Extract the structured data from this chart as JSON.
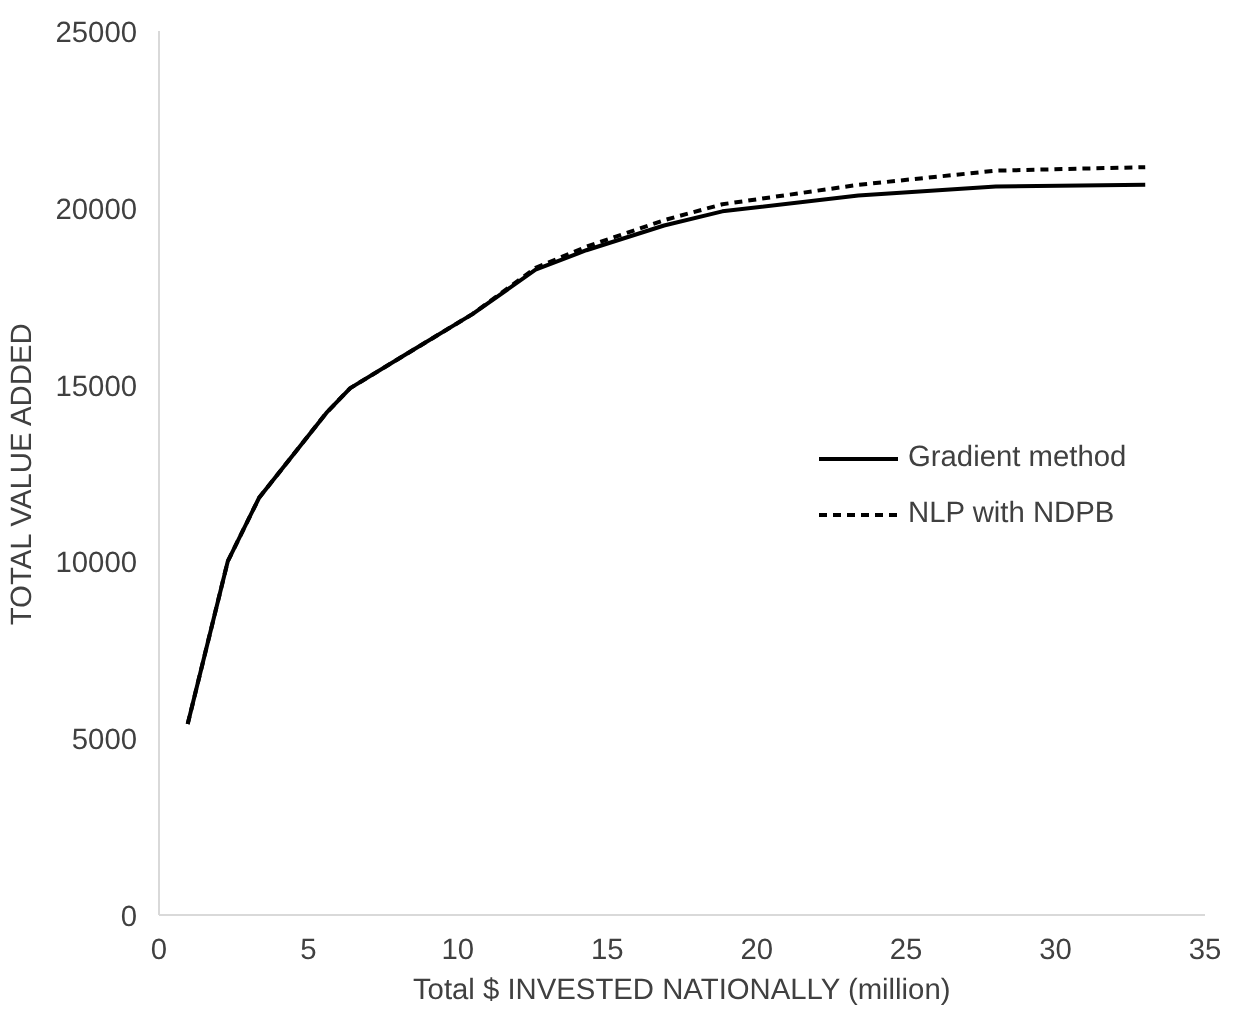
{
  "chart_data": {
    "type": "line",
    "xlabel": "Total $ INVESTED NATIONALLY (million)",
    "ylabel": "TOTAL VALUE ADDED",
    "xlim": [
      0,
      35
    ],
    "ylim": [
      0,
      25000
    ],
    "xticks": [
      0,
      5,
      10,
      15,
      20,
      25,
      30,
      35
    ],
    "yticks": [
      0,
      5000,
      10000,
      15000,
      20000,
      25000
    ],
    "grid": false,
    "legend": "right",
    "marker": "none",
    "series": [
      {
        "name": "Gradient method",
        "color": "#000000",
        "line_style": "solid",
        "x": [
          0.96,
          2.3,
          3.35,
          5.6,
          6.4,
          8.25,
          10.5,
          12.6,
          14.3,
          16.9,
          18.85,
          23.4,
          28,
          33
        ],
        "values": [
          5400,
          10000,
          11800,
          14200,
          14900,
          15850,
          17000,
          18250,
          18800,
          19500,
          19900,
          20350,
          20600,
          20650
        ]
      },
      {
        "name": "NLP with NDPB",
        "color": "#000000",
        "line_style": "dashed",
        "x": [
          0.96,
          2.3,
          3.35,
          5.6,
          6.4,
          8.25,
          10.5,
          12.6,
          14.3,
          16.9,
          18.85,
          23.4,
          28,
          33
        ],
        "values": [
          5400,
          10000,
          11800,
          14200,
          14900,
          15850,
          17000,
          18300,
          18900,
          19650,
          20100,
          20650,
          21050,
          21150
        ]
      }
    ]
  }
}
